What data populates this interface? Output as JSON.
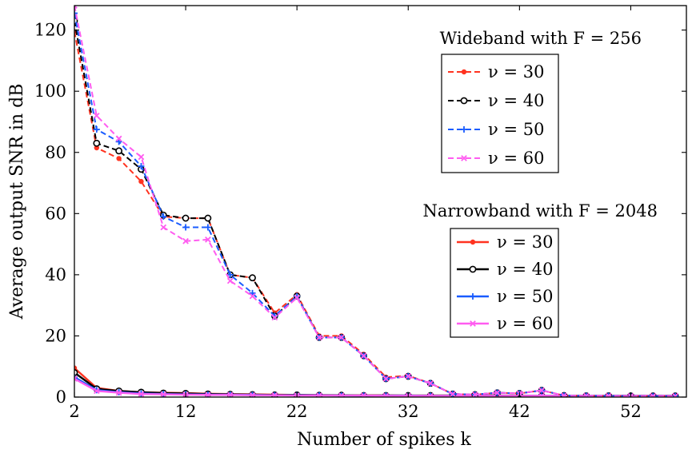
{
  "chart_data": {
    "type": "line",
    "xlabel": "Number of spikes k",
    "ylabel": "Average output SNR in dB",
    "xlim": [
      2,
      57
    ],
    "ylim": [
      0,
      128
    ],
    "xticks": [
      "2",
      "12",
      "22",
      "32",
      "42",
      "52"
    ],
    "yticks": [
      "0",
      "20",
      "40",
      "60",
      "80",
      "100",
      "120"
    ],
    "grid": false,
    "x": [
      2,
      4,
      6,
      8,
      10,
      12,
      14,
      16,
      18,
      20,
      22,
      24,
      26,
      28,
      30,
      32,
      34,
      36,
      38,
      40,
      42,
      44,
      46,
      48,
      50,
      52,
      54,
      56
    ],
    "legends": [
      {
        "title": "Wideband with F = 256",
        "placement": "top-right",
        "entries": [
          "ν = 30",
          "ν = 40",
          "ν = 50",
          "ν = 60"
        ]
      },
      {
        "title": "Narrowband with F = 2048",
        "placement": "center-right",
        "entries": [
          "ν = 30",
          "ν = 40",
          "ν = 50",
          "ν = 60"
        ]
      }
    ],
    "series": [
      {
        "name": "ν = 30",
        "group": "wideband",
        "color": "#ff3320",
        "marker": "dot",
        "dashed": true,
        "values": [
          119.5,
          81.5,
          78,
          70.5,
          59,
          58.5,
          58.5,
          40,
          39,
          27.5,
          33.5,
          20,
          20,
          14,
          6.5,
          7,
          4.5,
          1,
          0.8,
          1.4,
          1.2,
          2.2,
          0.5,
          0.4,
          0.4,
          0.3,
          0.3,
          0.3
        ]
      },
      {
        "name": "ν = 40",
        "group": "wideband",
        "color": "#000000",
        "marker": "circle",
        "dashed": true,
        "values": [
          123,
          83,
          80.5,
          74.5,
          59.5,
          58.5,
          58.5,
          40,
          39,
          26.5,
          33,
          19.5,
          19.5,
          13.5,
          6,
          6.8,
          4.5,
          1,
          0.8,
          1.4,
          1.2,
          2.2,
          0.5,
          0.4,
          0.4,
          0.3,
          0.3,
          0.3
        ]
      },
      {
        "name": "ν = 50",
        "group": "wideband",
        "color": "#1a5cff",
        "marker": "plus",
        "dashed": true,
        "values": [
          125.5,
          87.5,
          83.5,
          75.5,
          59,
          55.5,
          55.5,
          40,
          34,
          26.5,
          33,
          19.5,
          19.5,
          13.5,
          6,
          6.8,
          4.5,
          1,
          0.8,
          1.4,
          1.2,
          2.2,
          0.5,
          0.4,
          0.4,
          0.3,
          0.3,
          0.3
        ]
      },
      {
        "name": "ν = 60",
        "group": "wideband",
        "color": "#ff5cf0",
        "marker": "cross",
        "dashed": true,
        "values": [
          128,
          92,
          84.5,
          78.5,
          55.5,
          51,
          51.5,
          38,
          33,
          26,
          32.5,
          19.5,
          19.5,
          13.5,
          6,
          6.8,
          4.5,
          1,
          0.8,
          1.4,
          1.2,
          2.2,
          0.5,
          0.4,
          0.4,
          0.3,
          0.3,
          0.3
        ]
      },
      {
        "name": "ν = 30",
        "group": "narrowband",
        "color": "#ff3320",
        "marker": "dot",
        "dashed": false,
        "values": [
          9.5,
          3,
          2,
          1.6,
          1.4,
          1.3,
          1.1,
          1,
          0.9,
          0.8,
          0.7,
          0.7,
          0.6,
          0.6,
          0.6,
          0.5,
          0.5,
          0.5,
          0.5,
          0.5,
          0.5,
          0.4,
          0.4,
          0.4,
          0.4,
          0.4,
          0.4,
          0.4
        ]
      },
      {
        "name": "ν = 40",
        "group": "narrowband",
        "color": "#000000",
        "marker": "circle",
        "dashed": false,
        "values": [
          8,
          2.7,
          2,
          1.6,
          1.3,
          1.2,
          1,
          0.9,
          0.8,
          0.7,
          0.7,
          0.6,
          0.6,
          0.5,
          0.5,
          0.5,
          0.5,
          0.5,
          0.5,
          0.5,
          0.4,
          0.4,
          0.4,
          0.4,
          0.4,
          0.4,
          0.4,
          0.4
        ]
      },
      {
        "name": "ν = 50",
        "group": "narrowband",
        "color": "#1a5cff",
        "marker": "plus",
        "dashed": false,
        "values": [
          6.5,
          2.3,
          1.6,
          1.2,
          1,
          0.9,
          0.8,
          0.8,
          0.7,
          0.6,
          0.6,
          0.6,
          0.5,
          0.5,
          0.5,
          0.5,
          0.4,
          0.4,
          0.4,
          0.4,
          0.4,
          0.4,
          0.4,
          0.4,
          0.4,
          0.4,
          0.4,
          0.4
        ]
      },
      {
        "name": "ν = 60",
        "group": "narrowband",
        "color": "#ff5cf0",
        "marker": "cross",
        "dashed": false,
        "values": [
          6,
          2,
          1.4,
          1,
          0.9,
          0.8,
          0.7,
          0.7,
          0.6,
          0.6,
          0.5,
          0.5,
          0.5,
          0.5,
          0.4,
          0.4,
          0.4,
          0.4,
          0.4,
          0.4,
          0.4,
          0.4,
          0.4,
          0.4,
          0.4,
          0.4,
          0.4,
          0.4
        ]
      }
    ]
  }
}
